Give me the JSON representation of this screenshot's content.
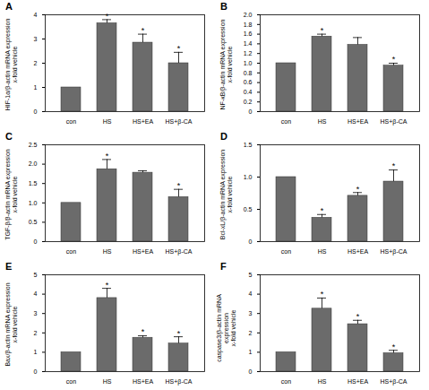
{
  "chart_data": [
    {
      "type": "bar",
      "panel": "A",
      "ylabel": "HIF-1α/β-actin mRNA expression\nx-fold vehicle",
      "categories": [
        "con",
        "HS",
        "HS+EA",
        "HS+β-CA"
      ],
      "values": [
        1.0,
        3.65,
        2.85,
        2.0
      ],
      "errors": [
        0,
        0.15,
        0.35,
        0.45
      ],
      "annotations": [
        null,
        "*",
        "*",
        "*"
      ],
      "color": "#6b6b6b",
      "ylim": [
        0,
        4
      ],
      "yticks": [
        0,
        1,
        2,
        3,
        4
      ]
    },
    {
      "type": "bar",
      "panel": "B",
      "ylabel": "NF-κB/β-actin mRNA expression\nx-fold vehicle",
      "categories": [
        "con",
        "HS",
        "HS+EA",
        "HS+β-CA"
      ],
      "values": [
        1.0,
        1.55,
        1.38,
        0.95
      ],
      "errors": [
        0,
        0.05,
        0.15,
        0.05
      ],
      "annotations": [
        null,
        "*",
        null,
        "*"
      ],
      "color": "#6b6b6b",
      "ylim": [
        0,
        2
      ],
      "yticks": [
        0,
        0.2,
        0.4,
        0.6,
        0.8,
        {
          "value": 1,
          "label": "1.0"
        },
        1.2,
        1.4,
        1.6,
        1.8,
        {
          "value": 2,
          "label": "2.0"
        }
      ]
    },
    {
      "type": "bar",
      "panel": "C",
      "ylabel": "TGF-β/β-actin mRNA expression\nx-fold vehicle",
      "categories": [
        "con",
        "HS",
        "HS+EA",
        "HS+β-CA"
      ],
      "values": [
        1.0,
        1.87,
        1.78,
        1.15
      ],
      "errors": [
        0,
        0.25,
        0.05,
        0.2
      ],
      "annotations": [
        null,
        "*",
        null,
        "*"
      ],
      "color": "#6b6b6b",
      "ylim": [
        0,
        2.5
      ],
      "yticks": [
        0,
        0.5,
        {
          "value": 1,
          "label": "1.0"
        },
        1.5,
        {
          "value": 2,
          "label": "2.0"
        },
        2.5
      ]
    },
    {
      "type": "bar",
      "panel": "D",
      "ylabel": "Bcl-xL/β-actin mRNA expression\nx-fold vehicle",
      "categories": [
        "con",
        "HS",
        "HS+EA",
        "HS+β-CA"
      ],
      "values": [
        1.0,
        0.37,
        0.71,
        0.93
      ],
      "errors": [
        0,
        0.05,
        0.05,
        0.18
      ],
      "annotations": [
        null,
        "*",
        "*",
        "*"
      ],
      "color": "#6b6b6b",
      "ylim": [
        0,
        1.5
      ],
      "yticks": [
        0,
        0.5,
        {
          "value": 1,
          "label": "1.0"
        },
        1.5
      ]
    },
    {
      "type": "bar",
      "panel": "E",
      "ylabel": "Bax/β-actin mRNA expression\nx-fold vehicle",
      "categories": [
        "con",
        "HS",
        "HS+EA",
        "HS+β-CA"
      ],
      "values": [
        1.0,
        3.8,
        1.75,
        1.45
      ],
      "errors": [
        0,
        0.5,
        0.1,
        0.35
      ],
      "annotations": [
        null,
        "*",
        "*",
        "*"
      ],
      "color": "#6b6b6b",
      "ylim": [
        0,
        5
      ],
      "yticks": [
        0,
        1,
        2,
        3,
        4,
        5
      ]
    },
    {
      "type": "bar",
      "panel": "F",
      "ylabel": "caspase3/β-actin mRNA expression\nx-fold vehicle",
      "categories": [
        "con",
        "HS",
        "HS+EA",
        "HS+β-CA"
      ],
      "values": [
        1.0,
        3.25,
        2.45,
        0.95
      ],
      "errors": [
        0,
        0.55,
        0.2,
        0.15
      ],
      "annotations": [
        null,
        "*",
        "*",
        "*"
      ],
      "color": "#6b6b6b",
      "ylim": [
        0,
        5
      ],
      "yticks": [
        0,
        1,
        2,
        3,
        4,
        5
      ]
    }
  ]
}
